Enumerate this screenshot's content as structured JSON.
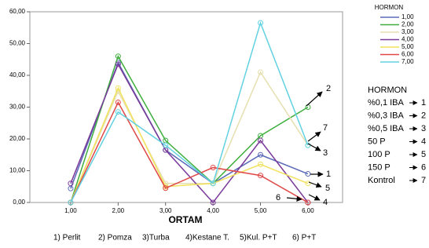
{
  "chart_data": {
    "type": "line",
    "xlabel": "ORTAM",
    "x": [
      1,
      2,
      3,
      4,
      5,
      6
    ],
    "xlim": [
      0.14,
      6.73
    ],
    "xticks": [
      {
        "value": 1,
        "label": "1,00"
      },
      {
        "value": 2,
        "label": "2,00"
      },
      {
        "value": 3,
        "label": "3,00"
      },
      {
        "value": 4,
        "label": "4,00"
      },
      {
        "value": 5,
        "label": "5,00"
      },
      {
        "value": 6,
        "label": "6,00"
      }
    ],
    "ylim": [
      0,
      60
    ],
    "yticks": [
      {
        "value": 0,
        "label": "0,00"
      },
      {
        "value": 10,
        "label": "10,00"
      },
      {
        "value": 20,
        "label": "20,00"
      },
      {
        "value": 30,
        "label": "30,00"
      },
      {
        "value": 40,
        "label": "40,00"
      },
      {
        "value": 50,
        "label": "50,00"
      },
      {
        "value": 60,
        "label": "60,00"
      }
    ],
    "legend_title": "HORMON",
    "legend": "right",
    "series": [
      {
        "name": "1,00",
        "color": "#5a6ab8",
        "values": [
          4.4,
          44,
          16.5,
          6,
          15,
          9
        ]
      },
      {
        "name": "2,00",
        "color": "#3fae3f",
        "values": [
          0,
          46,
          19.5,
          6,
          21,
          30
        ]
      },
      {
        "name": "3,00",
        "color": "#e6dfb0",
        "values": [
          0,
          35,
          6,
          6,
          41,
          18
        ]
      },
      {
        "name": "4,00",
        "color": "#7a3a9a",
        "values": [
          6,
          43.5,
          16.5,
          0,
          19.5,
          0
        ]
      },
      {
        "name": "5,00",
        "color": "#f2e25e",
        "values": [
          0,
          36,
          5,
          6,
          12,
          6
        ]
      },
      {
        "name": "6,00",
        "color": "#e04848",
        "values": [
          0,
          31.5,
          4.5,
          11,
          8.5,
          0
        ]
      },
      {
        "name": "7,00",
        "color": "#62d2e2",
        "values": [
          0,
          28.5,
          18,
          6,
          56.5,
          18
        ]
      }
    ],
    "annotations": [
      "2",
      "7",
      "3",
      "1",
      "5",
      "4",
      "6"
    ],
    "category_key": [
      "1) Perlit",
      "2) Pomza",
      "3)Turba",
      "4)Kestane T.",
      "5)Kul. P+T",
      "6) P+T"
    ],
    "key_title": "HORMON",
    "key": [
      {
        "label": "%0,1 IBA",
        "code": "1"
      },
      {
        "label": "%0,3 IBA",
        "code": "2"
      },
      {
        "label": "%0,5 IBA",
        "code": "3"
      },
      {
        "label": "50 P",
        "code": "4"
      },
      {
        "label": "100 P",
        "code": "5"
      },
      {
        "label": "150 P",
        "code": "6"
      },
      {
        "label": "Kontrol",
        "code": "7"
      }
    ]
  }
}
